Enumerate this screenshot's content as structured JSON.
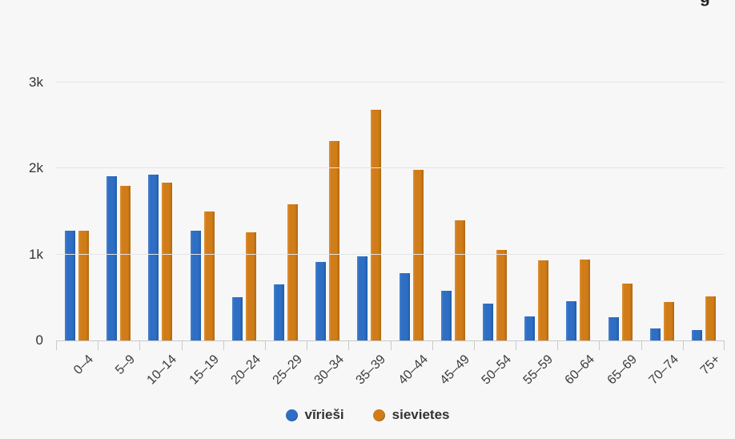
{
  "page": {
    "background": "#f7f7f7",
    "clipped_title_fragment": "ģ"
  },
  "chart_data": {
    "type": "bar",
    "title": "",
    "categories": [
      "0–4",
      "5–9",
      "10–14",
      "15–19",
      "20–24",
      "25–29",
      "30–34",
      "35–39",
      "40–44",
      "45–49",
      "50–54",
      "55–59",
      "60–64",
      "65–69",
      "70–74",
      "75+"
    ],
    "series": [
      {
        "name": "vīrieši",
        "color": "#2e6ec3",
        "values": [
          1270,
          1910,
          1930,
          1270,
          500,
          650,
          910,
          980,
          780,
          580,
          430,
          280,
          460,
          270,
          140,
          120
        ]
      },
      {
        "name": "sievietes",
        "color": "#d07c19",
        "values": [
          1270,
          1800,
          1830,
          1500,
          1260,
          1580,
          2320,
          2680,
          1980,
          1400,
          1050,
          930,
          940,
          660,
          450,
          510
        ]
      }
    ],
    "xlabel": "",
    "ylabel": "",
    "yticks": [
      {
        "value": 0,
        "label": "0"
      },
      {
        "value": 1000,
        "label": "1k"
      },
      {
        "value": 2000,
        "label": "2k"
      },
      {
        "value": 3000,
        "label": "3k"
      }
    ],
    "ylim": [
      0,
      3440
    ],
    "grid": "horizontal",
    "legend_position": "bottom"
  }
}
